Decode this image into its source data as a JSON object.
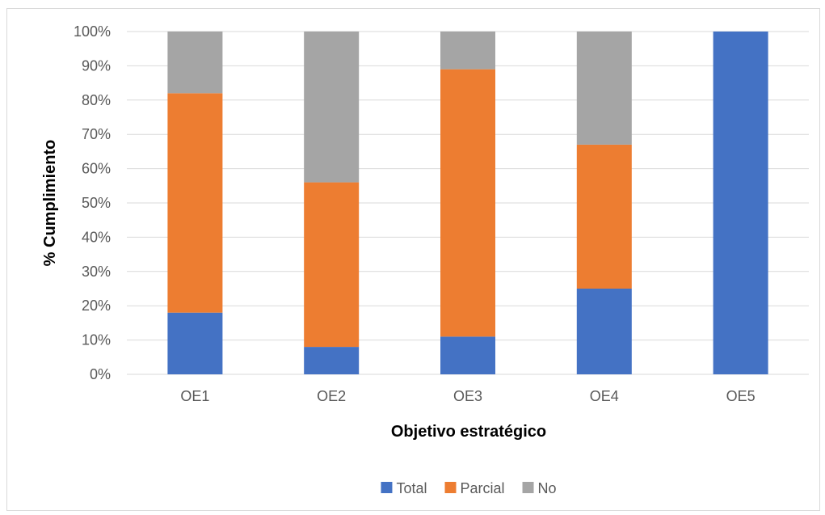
{
  "chart_data": {
    "type": "bar",
    "stacked": true,
    "categories": [
      "OE1",
      "OE2",
      "OE3",
      "OE4",
      "OE5"
    ],
    "series": [
      {
        "name": "Total",
        "values": [
          18,
          8,
          11,
          25,
          100
        ],
        "color": "#4472C4"
      },
      {
        "name": "Parcial",
        "values": [
          64,
          48,
          78,
          42,
          0
        ],
        "color": "#ED7D31"
      },
      {
        "name": "No",
        "values": [
          18,
          44,
          11,
          33,
          0
        ],
        "color": "#A5A5A5"
      }
    ],
    "title": "",
    "xlabel": "Objetivo estratégico",
    "ylabel": "% Cumplimiento",
    "ylim": [
      0,
      100
    ],
    "yticks": [
      0,
      10,
      20,
      30,
      40,
      50,
      60,
      70,
      80,
      90,
      100
    ],
    "ytick_labels": [
      "0%",
      "10%",
      "20%",
      "30%",
      "40%",
      "50%",
      "60%",
      "70%",
      "80%",
      "90%",
      "100%"
    ],
    "grid": true,
    "legend": "bottom",
    "gridline_color": "#d9d9d9"
  }
}
